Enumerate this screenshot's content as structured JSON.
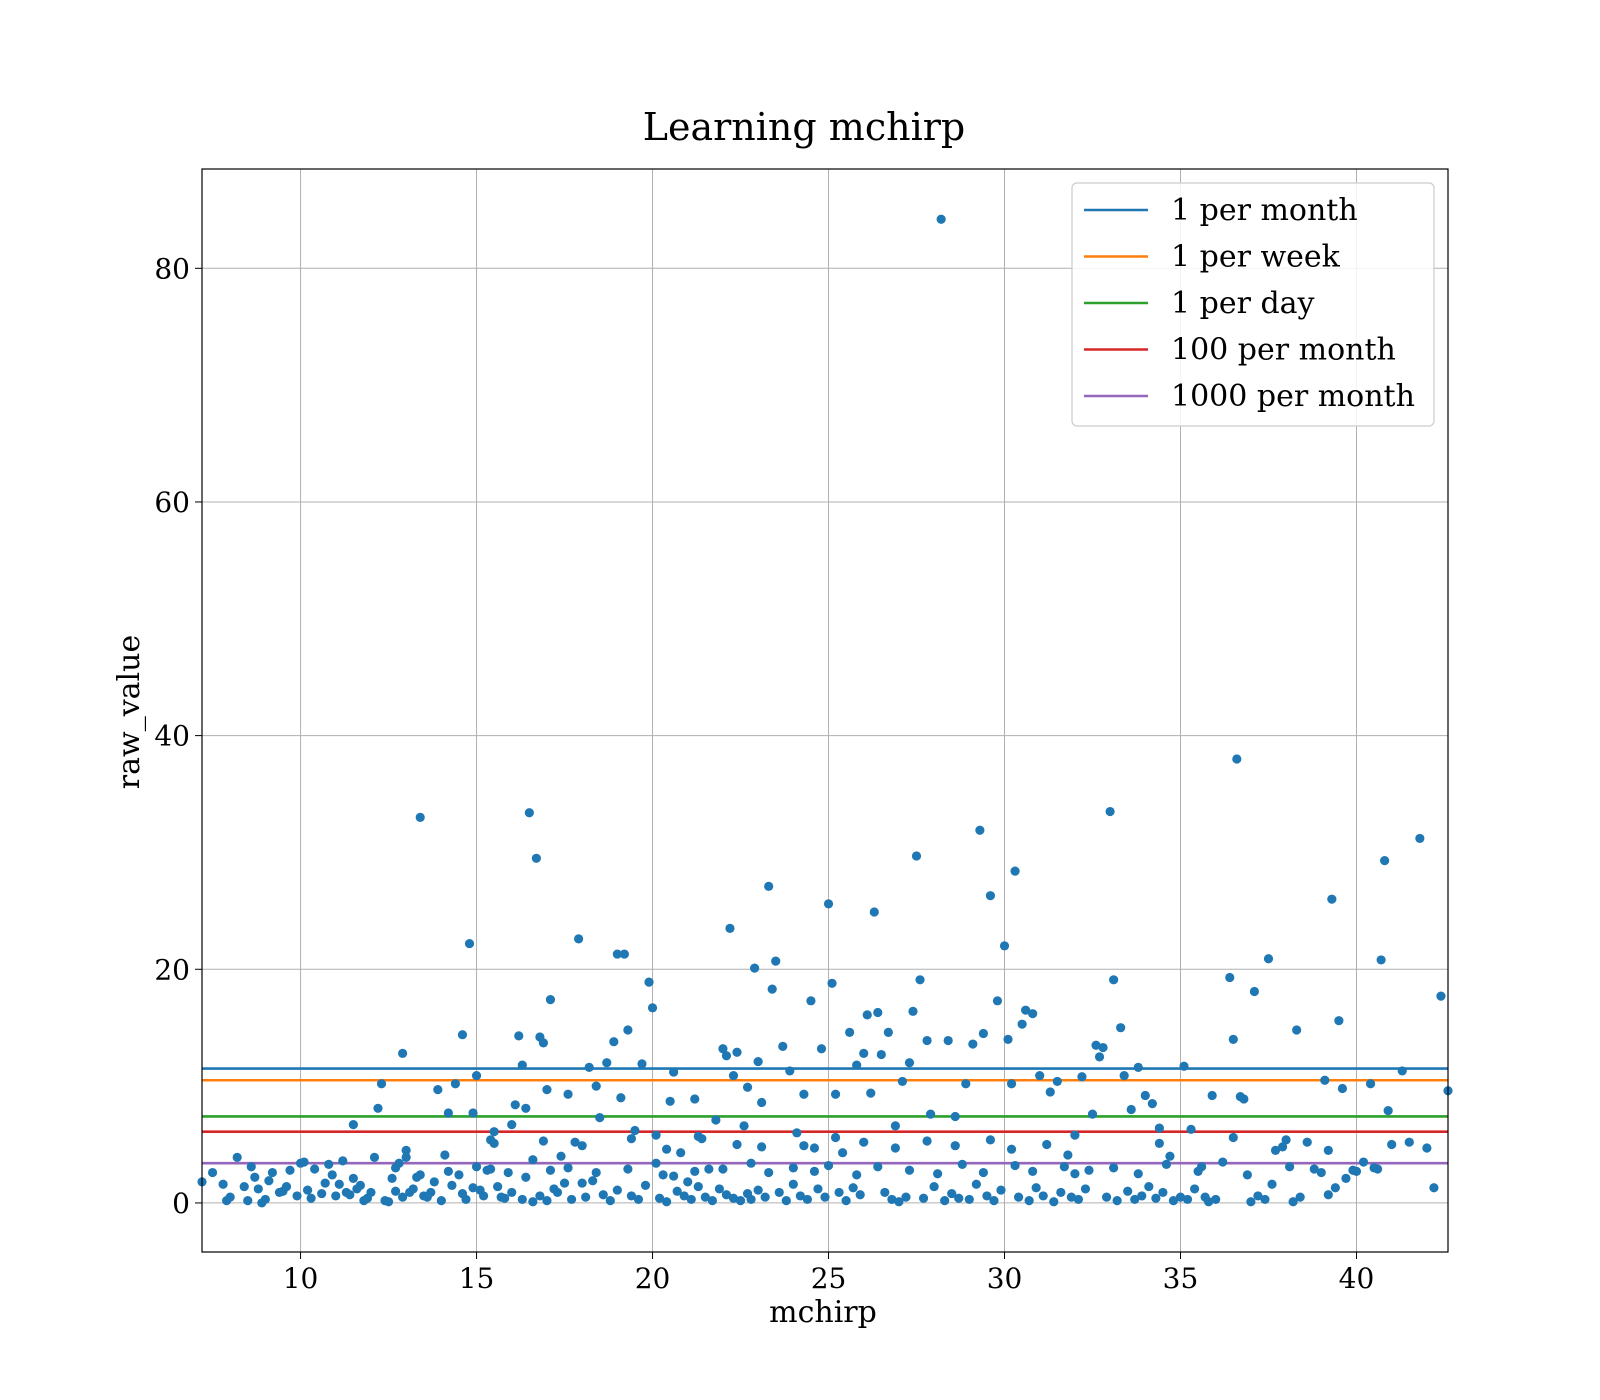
{
  "chart_data": {
    "type": "scatter",
    "title": "Learning mchirp",
    "xlabel": "mchirp",
    "ylabel": "raw_value",
    "xlim": [
      7.2,
      42.6
    ],
    "ylim": [
      -4.2,
      88.5
    ],
    "xticks": [
      10,
      15,
      20,
      25,
      30,
      35,
      40
    ],
    "yticks": [
      0,
      20,
      40,
      60,
      80
    ],
    "grid": true,
    "legend_position": "top-right",
    "points_color": "#1f77b4",
    "points": [
      [
        7.2,
        1.8
      ],
      [
        7.5,
        2.6
      ],
      [
        7.8,
        1.6
      ],
      [
        7.9,
        0.2
      ],
      [
        8.2,
        3.9
      ],
      [
        8.4,
        1.4
      ],
      [
        8.5,
        0.2
      ],
      [
        8.6,
        3.1
      ],
      [
        8.8,
        1.2
      ],
      [
        8.9,
        0.0
      ],
      [
        9.1,
        1.9
      ],
      [
        9.2,
        2.6
      ],
      [
        9.4,
        0.9
      ],
      [
        9.6,
        1.4
      ],
      [
        9.7,
        2.8
      ],
      [
        9.9,
        0.6
      ],
      [
        10.1,
        3.5
      ],
      [
        10.2,
        1.1
      ],
      [
        10.4,
        2.9
      ],
      [
        10.6,
        0.8
      ],
      [
        10.8,
        3.3
      ],
      [
        10.9,
        2.4
      ],
      [
        11.1,
        1.6
      ],
      [
        11.2,
        3.6
      ],
      [
        11.4,
        0.7
      ],
      [
        11.5,
        6.7
      ],
      [
        11.7,
        1.5
      ],
      [
        11.9,
        0.4
      ],
      [
        12.1,
        3.9
      ],
      [
        12.2,
        8.1
      ],
      [
        12.3,
        10.2
      ],
      [
        12.4,
        0.2
      ],
      [
        12.6,
        2.1
      ],
      [
        12.7,
        1.0
      ],
      [
        12.8,
        3.4
      ],
      [
        12.9,
        12.8
      ],
      [
        13.0,
        3.9
      ],
      [
        13.1,
        0.9
      ],
      [
        13.3,
        2.2
      ],
      [
        13.4,
        33.0
      ],
      [
        13.6,
        0.5
      ],
      [
        13.8,
        1.8
      ],
      [
        13.9,
        9.7
      ],
      [
        14.1,
        4.1
      ],
      [
        14.2,
        7.7
      ],
      [
        14.4,
        10.2
      ],
      [
        14.5,
        2.4
      ],
      [
        14.6,
        14.4
      ],
      [
        14.7,
        0.3
      ],
      [
        14.8,
        22.2
      ],
      [
        14.9,
        7.7
      ],
      [
        15.0,
        10.9
      ],
      [
        15.1,
        1.1
      ],
      [
        15.3,
        2.8
      ],
      [
        15.4,
        5.4
      ],
      [
        15.5,
        6.1
      ],
      [
        15.7,
        0.5
      ],
      [
        15.9,
        2.6
      ],
      [
        16.0,
        6.7
      ],
      [
        16.1,
        8.4
      ],
      [
        16.2,
        14.3
      ],
      [
        16.3,
        11.8
      ],
      [
        16.4,
        8.1
      ],
      [
        16.5,
        33.4
      ],
      [
        16.6,
        3.7
      ],
      [
        16.7,
        29.5
      ],
      [
        16.8,
        14.2
      ],
      [
        16.9,
        13.7
      ],
      [
        17.0,
        9.7
      ],
      [
        17.1,
        17.4
      ],
      [
        17.2,
        1.2
      ],
      [
        17.4,
        4.0
      ],
      [
        17.6,
        9.3
      ],
      [
        17.8,
        5.2
      ],
      [
        17.9,
        22.6
      ],
      [
        18.0,
        1.7
      ],
      [
        18.2,
        11.6
      ],
      [
        18.4,
        10.0
      ],
      [
        18.5,
        7.3
      ],
      [
        18.7,
        12.0
      ],
      [
        18.9,
        13.8
      ],
      [
        19.0,
        21.3
      ],
      [
        19.1,
        9.0
      ],
      [
        19.2,
        21.3
      ],
      [
        19.3,
        14.8
      ],
      [
        19.5,
        6.2
      ],
      [
        19.7,
        11.9
      ],
      [
        19.9,
        18.9
      ],
      [
        20.0,
        16.7
      ],
      [
        20.1,
        5.8
      ],
      [
        20.3,
        2.4
      ],
      [
        20.5,
        8.7
      ],
      [
        20.6,
        11.2
      ],
      [
        20.8,
        4.3
      ],
      [
        21.0,
        1.8
      ],
      [
        21.2,
        8.9
      ],
      [
        21.4,
        5.5
      ],
      [
        21.6,
        2.9
      ],
      [
        21.8,
        7.1
      ],
      [
        22.0,
        13.2
      ],
      [
        22.1,
        12.6
      ],
      [
        22.2,
        23.5
      ],
      [
        22.3,
        10.9
      ],
      [
        22.4,
        12.9
      ],
      [
        22.6,
        6.6
      ],
      [
        22.7,
        9.9
      ],
      [
        22.9,
        20.1
      ],
      [
        23.0,
        12.1
      ],
      [
        23.1,
        8.6
      ],
      [
        23.3,
        27.1
      ],
      [
        23.4,
        18.3
      ],
      [
        23.5,
        20.7
      ],
      [
        23.7,
        13.4
      ],
      [
        23.9,
        11.3
      ],
      [
        24.1,
        6.0
      ],
      [
        24.3,
        9.3
      ],
      [
        24.5,
        17.3
      ],
      [
        24.6,
        4.7
      ],
      [
        24.8,
        13.2
      ],
      [
        25.0,
        25.6
      ],
      [
        25.1,
        18.8
      ],
      [
        25.2,
        9.3
      ],
      [
        25.4,
        4.3
      ],
      [
        25.6,
        14.6
      ],
      [
        25.8,
        11.8
      ],
      [
        26.0,
        12.8
      ],
      [
        26.1,
        16.1
      ],
      [
        26.2,
        9.4
      ],
      [
        26.3,
        24.9
      ],
      [
        26.4,
        16.3
      ],
      [
        26.5,
        12.7
      ],
      [
        26.7,
        14.6
      ],
      [
        26.9,
        6.6
      ],
      [
        27.1,
        10.4
      ],
      [
        27.3,
        12.0
      ],
      [
        27.4,
        16.4
      ],
      [
        27.5,
        29.7
      ],
      [
        27.6,
        19.1
      ],
      [
        27.8,
        13.9
      ],
      [
        27.9,
        7.6
      ],
      [
        28.2,
        84.2
      ],
      [
        28.4,
        13.9
      ],
      [
        28.6,
        7.4
      ],
      [
        28.9,
        10.2
      ],
      [
        29.1,
        13.6
      ],
      [
        29.3,
        31.9
      ],
      [
        29.4,
        14.5
      ],
      [
        29.6,
        26.3
      ],
      [
        29.8,
        17.3
      ],
      [
        30.0,
        22.0
      ],
      [
        30.1,
        14.0
      ],
      [
        30.2,
        10.2
      ],
      [
        30.3,
        28.4
      ],
      [
        30.5,
        15.3
      ],
      [
        30.6,
        16.5
      ],
      [
        30.8,
        16.2
      ],
      [
        31.0,
        10.9
      ],
      [
        31.3,
        9.5
      ],
      [
        31.5,
        10.4
      ],
      [
        31.8,
        4.1
      ],
      [
        32.0,
        2.5
      ],
      [
        32.2,
        10.8
      ],
      [
        32.5,
        7.6
      ],
      [
        32.6,
        13.5
      ],
      [
        32.7,
        12.5
      ],
      [
        32.8,
        13.3
      ],
      [
        33.0,
        33.5
      ],
      [
        33.1,
        19.1
      ],
      [
        33.3,
        15.0
      ],
      [
        33.4,
        10.9
      ],
      [
        33.6,
        8.0
      ],
      [
        33.8,
        11.6
      ],
      [
        34.0,
        9.2
      ],
      [
        34.2,
        8.5
      ],
      [
        34.4,
        6.4
      ],
      [
        34.7,
        4.0
      ],
      [
        35.1,
        11.7
      ],
      [
        35.3,
        6.3
      ],
      [
        35.6,
        3.1
      ],
      [
        35.9,
        9.2
      ],
      [
        36.2,
        3.5
      ],
      [
        36.4,
        19.3
      ],
      [
        36.5,
        14.0
      ],
      [
        36.6,
        38.0
      ],
      [
        36.7,
        9.1
      ],
      [
        36.8,
        8.9
      ],
      [
        37.1,
        18.1
      ],
      [
        37.5,
        20.9
      ],
      [
        37.7,
        4.5
      ],
      [
        38.0,
        5.4
      ],
      [
        38.3,
        14.8
      ],
      [
        38.6,
        5.2
      ],
      [
        38.8,
        2.9
      ],
      [
        39.1,
        10.5
      ],
      [
        39.3,
        26.0
      ],
      [
        39.5,
        15.6
      ],
      [
        39.6,
        9.8
      ],
      [
        39.9,
        2.8
      ],
      [
        40.2,
        3.5
      ],
      [
        40.4,
        10.2
      ],
      [
        40.6,
        2.9
      ],
      [
        40.7,
        20.8
      ],
      [
        40.8,
        29.3
      ],
      [
        40.9,
        7.9
      ],
      [
        41.3,
        11.3
      ],
      [
        41.5,
        5.2
      ],
      [
        41.8,
        31.2
      ],
      [
        42.0,
        4.7
      ],
      [
        42.2,
        1.3
      ],
      [
        42.4,
        17.7
      ],
      [
        42.6,
        9.6
      ],
      [
        8.0,
        0.5
      ],
      [
        9.0,
        0.3
      ],
      [
        9.5,
        1.0
      ],
      [
        10.3,
        0.4
      ],
      [
        10.7,
        1.7
      ],
      [
        11.0,
        0.6
      ],
      [
        11.3,
        0.9
      ],
      [
        11.6,
        1.2
      ],
      [
        11.8,
        0.2
      ],
      [
        12.0,
        0.9
      ],
      [
        12.5,
        0.1
      ],
      [
        12.9,
        0.5
      ],
      [
        13.2,
        1.2
      ],
      [
        13.5,
        0.6
      ],
      [
        13.7,
        0.9
      ],
      [
        14.0,
        0.2
      ],
      [
        14.3,
        1.5
      ],
      [
        14.6,
        0.8
      ],
      [
        14.9,
        1.3
      ],
      [
        15.2,
        0.6
      ],
      [
        15.6,
        1.4
      ],
      [
        15.8,
        0.4
      ],
      [
        16.0,
        0.9
      ],
      [
        16.3,
        0.3
      ],
      [
        16.6,
        0.1
      ],
      [
        16.8,
        0.6
      ],
      [
        17.0,
        0.2
      ],
      [
        17.3,
        0.9
      ],
      [
        17.5,
        1.7
      ],
      [
        17.7,
        0.3
      ],
      [
        18.1,
        0.5
      ],
      [
        18.3,
        1.9
      ],
      [
        18.6,
        0.7
      ],
      [
        18.8,
        0.2
      ],
      [
        19.0,
        1.1
      ],
      [
        19.4,
        0.6
      ],
      [
        19.6,
        0.3
      ],
      [
        19.8,
        1.5
      ],
      [
        20.2,
        0.4
      ],
      [
        20.4,
        0.1
      ],
      [
        20.7,
        1.0
      ],
      [
        20.9,
        0.6
      ],
      [
        21.1,
        0.3
      ],
      [
        21.3,
        1.4
      ],
      [
        21.5,
        0.5
      ],
      [
        21.7,
        0.2
      ],
      [
        21.9,
        1.2
      ],
      [
        22.1,
        0.7
      ],
      [
        22.3,
        0.4
      ],
      [
        22.5,
        0.2
      ],
      [
        22.7,
        0.8
      ],
      [
        22.8,
        0.3
      ],
      [
        23.0,
        1.1
      ],
      [
        23.2,
        0.5
      ],
      [
        23.6,
        0.9
      ],
      [
        23.8,
        0.2
      ],
      [
        24.0,
        1.6
      ],
      [
        24.2,
        0.6
      ],
      [
        24.4,
        0.3
      ],
      [
        24.7,
        1.2
      ],
      [
        24.9,
        0.5
      ],
      [
        25.3,
        0.9
      ],
      [
        25.5,
        0.2
      ],
      [
        25.7,
        1.3
      ],
      [
        25.9,
        0.7
      ],
      [
        26.6,
        0.9
      ],
      [
        26.8,
        0.3
      ],
      [
        27.0,
        0.1
      ],
      [
        27.2,
        0.5
      ],
      [
        27.7,
        0.4
      ],
      [
        28.0,
        1.4
      ],
      [
        28.3,
        0.2
      ],
      [
        28.5,
        0.8
      ],
      [
        28.7,
        0.4
      ],
      [
        29.0,
        0.3
      ],
      [
        29.2,
        1.6
      ],
      [
        29.5,
        0.6
      ],
      [
        29.7,
        0.2
      ],
      [
        29.9,
        1.1
      ],
      [
        30.4,
        0.5
      ],
      [
        30.7,
        0.2
      ],
      [
        30.9,
        1.3
      ],
      [
        31.1,
        0.6
      ],
      [
        31.4,
        0.1
      ],
      [
        31.6,
        0.9
      ],
      [
        31.9,
        0.5
      ],
      [
        32.1,
        0.3
      ],
      [
        32.3,
        1.2
      ],
      [
        32.9,
        0.5
      ],
      [
        33.2,
        0.2
      ],
      [
        33.5,
        1.0
      ],
      [
        33.7,
        0.3
      ],
      [
        33.9,
        0.6
      ],
      [
        34.1,
        1.4
      ],
      [
        34.3,
        0.4
      ],
      [
        34.5,
        0.9
      ],
      [
        34.8,
        0.2
      ],
      [
        35.0,
        0.5
      ],
      [
        35.2,
        0.3
      ],
      [
        35.4,
        1.2
      ],
      [
        35.7,
        0.5
      ],
      [
        35.8,
        0.1
      ],
      [
        36.0,
        0.3
      ],
      [
        37.0,
        0.1
      ],
      [
        37.2,
        0.6
      ],
      [
        37.4,
        0.3
      ],
      [
        37.6,
        1.6
      ],
      [
        38.2,
        0.1
      ],
      [
        38.4,
        0.5
      ],
      [
        39.2,
        0.7
      ],
      [
        39.4,
        1.3
      ],
      [
        39.7,
        2.1
      ],
      [
        40.0,
        2.7
      ],
      [
        8.7,
        2.2
      ],
      [
        10.0,
        3.4
      ],
      [
        11.5,
        2.1
      ],
      [
        12.7,
        3.0
      ],
      [
        13.4,
        2.4
      ],
      [
        14.2,
        2.7
      ],
      [
        15.0,
        3.1
      ],
      [
        15.4,
        2.9
      ],
      [
        16.4,
        2.2
      ],
      [
        17.1,
        2.8
      ],
      [
        17.6,
        3.0
      ],
      [
        18.4,
        2.6
      ],
      [
        19.3,
        2.9
      ],
      [
        20.1,
        3.4
      ],
      [
        20.6,
        2.3
      ],
      [
        21.2,
        2.7
      ],
      [
        22.0,
        2.9
      ],
      [
        22.8,
        3.4
      ],
      [
        23.3,
        2.6
      ],
      [
        24.0,
        3.0
      ],
      [
        24.6,
        2.7
      ],
      [
        25.0,
        3.2
      ],
      [
        25.8,
        2.4
      ],
      [
        26.4,
        3.1
      ],
      [
        27.3,
        2.8
      ],
      [
        28.1,
        2.5
      ],
      [
        28.8,
        3.3
      ],
      [
        29.4,
        2.6
      ],
      [
        30.3,
        3.2
      ],
      [
        30.8,
        2.7
      ],
      [
        31.7,
        3.1
      ],
      [
        32.4,
        2.8
      ],
      [
        33.1,
        3.0
      ],
      [
        33.8,
        2.5
      ],
      [
        34.6,
        3.3
      ],
      [
        35.5,
        2.7
      ],
      [
        36.9,
        2.4
      ],
      [
        38.1,
        3.1
      ],
      [
        39.0,
        2.6
      ],
      [
        40.5,
        3.0
      ],
      [
        13.0,
        4.5
      ],
      [
        15.5,
        5.1
      ],
      [
        16.9,
        5.3
      ],
      [
        18.0,
        4.9
      ],
      [
        19.4,
        5.5
      ],
      [
        20.4,
        4.6
      ],
      [
        21.3,
        5.7
      ],
      [
        22.4,
        5.0
      ],
      [
        23.1,
        4.8
      ],
      [
        24.3,
        4.9
      ],
      [
        25.2,
        5.6
      ],
      [
        26.0,
        5.2
      ],
      [
        26.9,
        4.7
      ],
      [
        27.8,
        5.3
      ],
      [
        28.6,
        4.9
      ],
      [
        29.6,
        5.4
      ],
      [
        30.2,
        4.6
      ],
      [
        31.2,
        5.0
      ],
      [
        32.0,
        5.8
      ],
      [
        34.4,
        5.1
      ],
      [
        36.5,
        5.6
      ],
      [
        37.9,
        4.8
      ],
      [
        39.2,
        4.5
      ],
      [
        41.0,
        5.0
      ]
    ],
    "lines": [
      {
        "name": "1 per month",
        "y": 11.5,
        "color": "#1f77b4"
      },
      {
        "name": "1 per week",
        "y": 10.5,
        "color": "#ff7f0e"
      },
      {
        "name": "1 per day",
        "y": 7.4,
        "color": "#2ca02c"
      },
      {
        "name": "100 per month",
        "y": 6.1,
        "color": "#d62728"
      },
      {
        "name": "1000 per month",
        "y": 3.4,
        "color": "#9467bd"
      }
    ]
  }
}
